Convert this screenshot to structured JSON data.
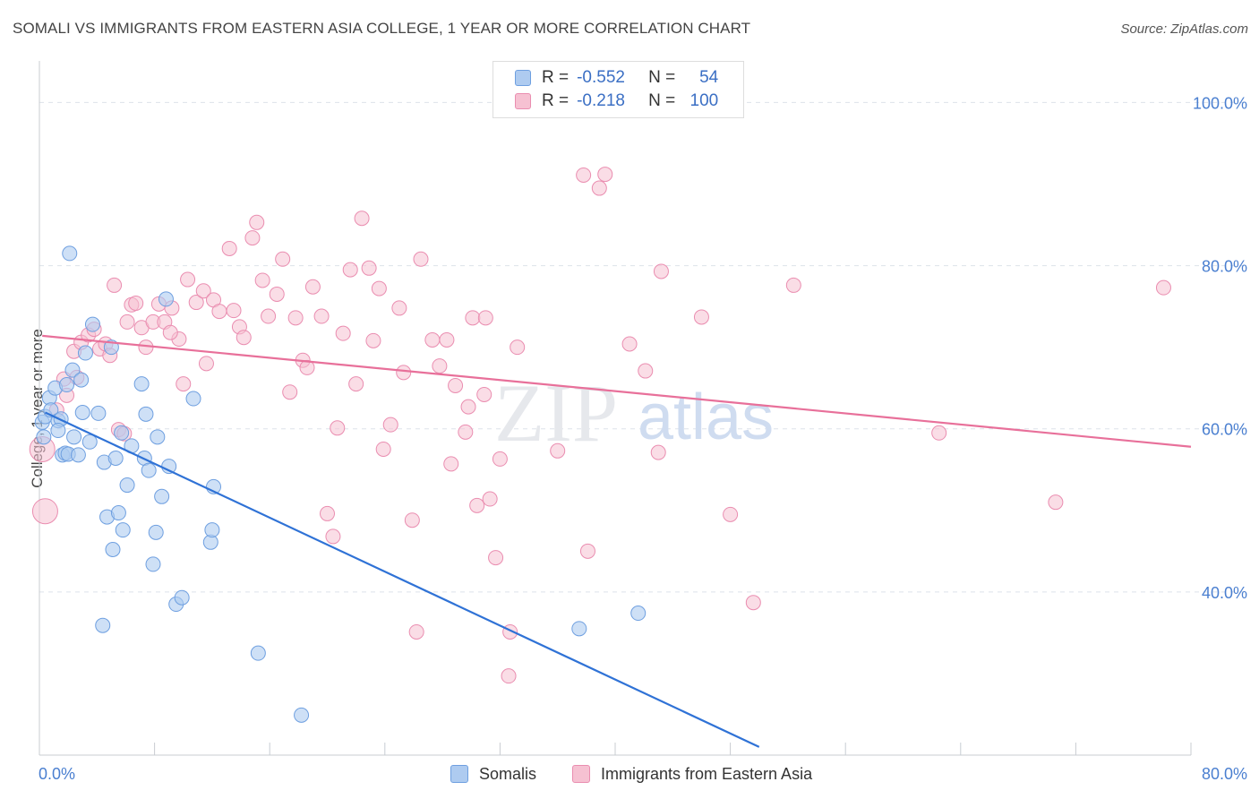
{
  "header": {
    "title": "SOMALI VS IMMIGRANTS FROM EASTERN ASIA COLLEGE, 1 YEAR OR MORE CORRELATION CHART",
    "source": "Source: ZipAtlas.com"
  },
  "watermark": {
    "zip": "ZIP",
    "atlas": "atlas"
  },
  "legend": {
    "somali": {
      "r_label": "R =",
      "r_value": "-0.552",
      "n_label": "N =",
      "n_value": "54"
    },
    "eastern_asia": {
      "r_label": "R =",
      "r_value": "-0.218",
      "n_label": "N =",
      "n_value": "100"
    }
  },
  "bottom_legend": {
    "somali": "Somalis",
    "eastern_asia": "Immigrants from Eastern Asia"
  },
  "colors": {
    "somali_fill": "#aecbf0",
    "somali_stroke": "#6e9fe0",
    "somali_line": "#2f72d6",
    "asia_fill": "#f6c1d2",
    "asia_stroke": "#ea8db0",
    "asia_line": "#e8709a",
    "axis_text": "#4a7fd0",
    "grid": "#dde2ea"
  },
  "chart_data": {
    "type": "scatter",
    "title": "SOMALI VS IMMIGRANTS FROM EASTERN ASIA COLLEGE, 1 YEAR OR MORE CORRELATION CHART",
    "xlabel": "",
    "ylabel": "College, 1 year or more",
    "xlim": [
      0,
      80
    ],
    "ylim": [
      20,
      104
    ],
    "x_tick_labels": [
      {
        "value": 0,
        "label": "0.0%"
      },
      {
        "value": 80,
        "label": "80.0%"
      }
    ],
    "y_tick_labels": [
      {
        "value": 100,
        "label": "100.0%"
      },
      {
        "value": 80,
        "label": "80.0%"
      },
      {
        "value": 60,
        "label": "60.0%"
      },
      {
        "value": 40,
        "label": "40.0%"
      }
    ],
    "series": [
      {
        "name": "Somalis",
        "r": -0.552,
        "n": 54,
        "trendline": {
          "x": [
            0.4,
            50
          ],
          "y": [
            62.0,
            21.0
          ]
        },
        "points": [
          [
            0.2,
            60.8
          ],
          [
            0.3,
            59.0
          ],
          [
            0.4,
            61.5
          ],
          [
            0.7,
            63.8
          ],
          [
            0.8,
            62.3
          ],
          [
            1.1,
            65.0
          ],
          [
            1.3,
            61.0
          ],
          [
            1.5,
            61.2
          ],
          [
            1.6,
            56.8
          ],
          [
            1.8,
            57.0
          ],
          [
            1.9,
            65.4
          ],
          [
            2.0,
            56.9
          ],
          [
            2.3,
            67.2
          ],
          [
            2.4,
            59.0
          ],
          [
            2.7,
            56.8
          ],
          [
            2.9,
            66.0
          ],
          [
            3.0,
            62.0
          ],
          [
            3.2,
            69.3
          ],
          [
            3.5,
            58.4
          ],
          [
            3.7,
            72.8
          ],
          [
            4.1,
            61.9
          ],
          [
            4.4,
            35.9
          ],
          [
            4.5,
            55.9
          ],
          [
            4.7,
            49.2
          ],
          [
            5.0,
            70.0
          ],
          [
            5.1,
            45.2
          ],
          [
            5.3,
            56.4
          ],
          [
            5.5,
            49.7
          ],
          [
            5.7,
            59.5
          ],
          [
            5.8,
            47.6
          ],
          [
            6.1,
            53.1
          ],
          [
            6.4,
            57.9
          ],
          [
            7.1,
            65.5
          ],
          [
            7.3,
            56.4
          ],
          [
            7.4,
            61.8
          ],
          [
            7.6,
            54.9
          ],
          [
            7.9,
            43.4
          ],
          [
            8.1,
            47.3
          ],
          [
            8.2,
            59.0
          ],
          [
            8.5,
            51.7
          ],
          [
            8.8,
            75.9
          ],
          [
            9.0,
            55.4
          ],
          [
            9.5,
            38.5
          ],
          [
            9.9,
            39.3
          ],
          [
            10.7,
            63.7
          ],
          [
            11.9,
            46.1
          ],
          [
            12.0,
            47.6
          ],
          [
            12.1,
            52.9
          ],
          [
            15.2,
            32.5
          ],
          [
            18.2,
            24.9
          ],
          [
            37.5,
            35.5
          ],
          [
            41.6,
            37.4
          ],
          [
            2.1,
            81.5
          ],
          [
            1.3,
            59.8
          ]
        ]
      },
      {
        "name": "Immigrants from Eastern Asia",
        "r": -0.218,
        "n": 100,
        "trendline": {
          "x": [
            0.2,
            80
          ],
          "y": [
            71.4,
            57.8
          ]
        },
        "points": [
          [
            0.2,
            57.5
          ],
          [
            0.4,
            49.9
          ],
          [
            1.2,
            62.3
          ],
          [
            1.7,
            66.1
          ],
          [
            1.9,
            64.1
          ],
          [
            2.4,
            69.5
          ],
          [
            2.6,
            66.3
          ],
          [
            2.9,
            70.6
          ],
          [
            3.4,
            71.5
          ],
          [
            3.8,
            72.2
          ],
          [
            4.2,
            69.8
          ],
          [
            4.6,
            70.4
          ],
          [
            4.9,
            69.0
          ],
          [
            5.2,
            77.6
          ],
          [
            5.5,
            59.9
          ],
          [
            6.1,
            73.1
          ],
          [
            6.4,
            75.2
          ],
          [
            6.7,
            75.4
          ],
          [
            7.1,
            72.4
          ],
          [
            7.4,
            70.0
          ],
          [
            7.9,
            73.1
          ],
          [
            8.3,
            75.3
          ],
          [
            8.7,
            73.1
          ],
          [
            9.2,
            74.8
          ],
          [
            9.7,
            71.0
          ],
          [
            10.0,
            65.5
          ],
          [
            10.3,
            78.3
          ],
          [
            10.9,
            75.5
          ],
          [
            11.4,
            76.9
          ],
          [
            11.6,
            68.0
          ],
          [
            12.1,
            75.8
          ],
          [
            12.5,
            74.4
          ],
          [
            13.2,
            82.1
          ],
          [
            13.5,
            74.5
          ],
          [
            13.9,
            72.5
          ],
          [
            14.2,
            71.2
          ],
          [
            14.8,
            83.4
          ],
          [
            15.1,
            85.3
          ],
          [
            15.5,
            78.2
          ],
          [
            15.9,
            73.8
          ],
          [
            16.5,
            76.5
          ],
          [
            16.9,
            80.8
          ],
          [
            17.4,
            64.5
          ],
          [
            17.8,
            73.6
          ],
          [
            18.3,
            68.4
          ],
          [
            18.6,
            67.5
          ],
          [
            19.0,
            77.4
          ],
          [
            19.6,
            73.8
          ],
          [
            20.0,
            49.6
          ],
          [
            20.4,
            46.8
          ],
          [
            20.7,
            60.1
          ],
          [
            21.1,
            71.7
          ],
          [
            21.6,
            79.5
          ],
          [
            22.0,
            65.5
          ],
          [
            22.4,
            85.8
          ],
          [
            22.9,
            79.7
          ],
          [
            23.2,
            70.8
          ],
          [
            23.6,
            77.2
          ],
          [
            23.9,
            57.5
          ],
          [
            24.4,
            60.5
          ],
          [
            25.0,
            74.8
          ],
          [
            25.3,
            66.9
          ],
          [
            25.9,
            48.8
          ],
          [
            26.2,
            35.1
          ],
          [
            26.5,
            80.8
          ],
          [
            27.3,
            70.9
          ],
          [
            27.8,
            67.7
          ],
          [
            28.3,
            70.9
          ],
          [
            28.6,
            55.7
          ],
          [
            28.9,
            65.3
          ],
          [
            29.6,
            59.6
          ],
          [
            29.8,
            62.7
          ],
          [
            30.1,
            73.6
          ],
          [
            30.4,
            50.6
          ],
          [
            30.9,
            64.2
          ],
          [
            31.0,
            73.6
          ],
          [
            31.3,
            51.4
          ],
          [
            31.7,
            44.2
          ],
          [
            32.0,
            56.3
          ],
          [
            32.7,
            35.1
          ],
          [
            32.6,
            29.7
          ],
          [
            33.2,
            70.0
          ],
          [
            36.0,
            57.3
          ],
          [
            37.8,
            91.1
          ],
          [
            38.1,
            45.0
          ],
          [
            38.9,
            89.5
          ],
          [
            39.3,
            91.2
          ],
          [
            41.0,
            70.4
          ],
          [
            42.1,
            67.1
          ],
          [
            43.0,
            57.1
          ],
          [
            43.2,
            79.3
          ],
          [
            46.0,
            73.7
          ],
          [
            48.0,
            49.5
          ],
          [
            49.6,
            38.7
          ],
          [
            52.4,
            77.6
          ],
          [
            62.5,
            59.5
          ],
          [
            70.6,
            51.0
          ],
          [
            78.1,
            77.3
          ],
          [
            5.9,
            59.4
          ],
          [
            9.1,
            71.8
          ]
        ]
      }
    ]
  }
}
